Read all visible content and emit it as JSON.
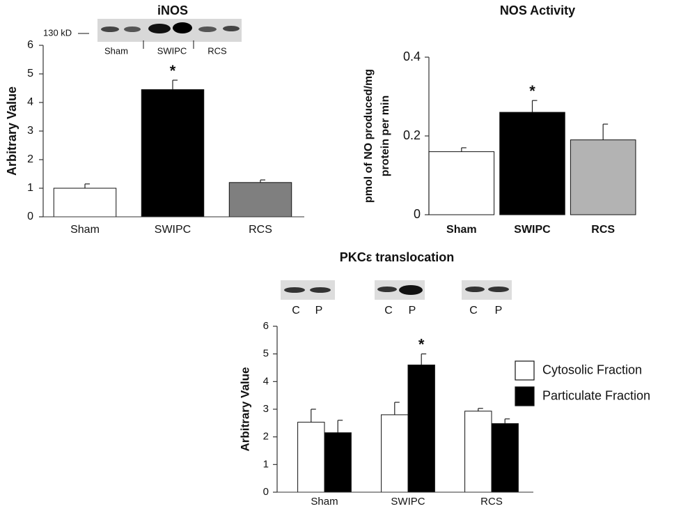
{
  "chart_data": [
    {
      "type": "bar",
      "title": "iNOS",
      "ylabel": [
        "Arbitrary Value"
      ],
      "categories": [
        "Sham",
        "SWIPC",
        "RCS"
      ],
      "values": [
        1.0,
        4.45,
        1.2
      ],
      "errors": [
        0.15,
        0.33,
        0.09
      ],
      "colors": [
        "#ffffff",
        "#000000",
        "#7f7f7f"
      ],
      "ylim": [
        0,
        6
      ],
      "yticks": [
        0,
        1,
        2,
        3,
        4,
        5,
        6
      ],
      "annotations": [
        {
          "text": "*",
          "category": "SWIPC"
        }
      ],
      "blot": {
        "marker": "130 kD",
        "lanes": [
          "Sham",
          "SWIPC",
          "RCS"
        ]
      }
    },
    {
      "type": "bar",
      "title": "NOS Activity",
      "ylabel": [
        "pmol of NO produced/mg",
        "protein per min"
      ],
      "categories": [
        "Sham",
        "SWIPC",
        "RCS"
      ],
      "values": [
        0.16,
        0.26,
        0.19
      ],
      "errors": [
        0.01,
        0.03,
        0.04
      ],
      "colors": [
        "#ffffff",
        "#000000",
        "#b3b3b3"
      ],
      "ylim": [
        0,
        0.4
      ],
      "yticks": [
        0,
        0.2,
        0.4
      ],
      "annotations": [
        {
          "text": "*",
          "category": "SWIPC"
        }
      ]
    },
    {
      "type": "bar",
      "title": "PKCε translocation",
      "ylabel": [
        "Arbitrary Value"
      ],
      "categories": [
        "Sham",
        "SWIPC",
        "RCS"
      ],
      "series": [
        {
          "name": "Cytosolic Fraction",
          "color": "#ffffff",
          "values": [
            2.53,
            2.8,
            2.93
          ],
          "errors": [
            0.47,
            0.45,
            0.1
          ]
        },
        {
          "name": "Particulate Fraction",
          "color": "#000000",
          "values": [
            2.15,
            4.6,
            2.48
          ],
          "errors": [
            0.45,
            0.4,
            0.17
          ]
        }
      ],
      "ylim": [
        0,
        6
      ],
      "yticks": [
        0,
        1,
        2,
        3,
        4,
        5,
        6
      ],
      "legend": "right",
      "annotations": [
        {
          "text": "*",
          "category": "SWIPC",
          "series": "Particulate Fraction"
        }
      ],
      "blot": {
        "lanes": [
          "C",
          "P",
          "C",
          "P",
          "C",
          "P"
        ]
      }
    }
  ]
}
